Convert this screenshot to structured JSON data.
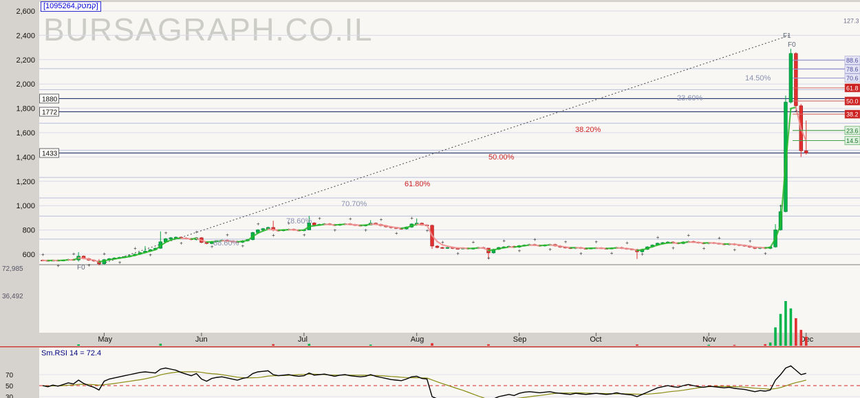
{
  "app": {
    "ticker": "[1095264,קמטק]",
    "watermark": "BURSAGRAPH.CO.IL"
  },
  "colors": {
    "up": "#00a040",
    "up_fill": "#00b44a",
    "down": "#e03030",
    "grid": "#d8d8e8",
    "fib_faint": "#b8bcdc",
    "navy": "#26366e",
    "trend": "#444444",
    "watermark": "#cccdc6",
    "plot_bg": "#f8f7f4",
    "band_bg": "#d6d3ce",
    "ma_up": "#2ab82a",
    "ma_down": "#f09090",
    "red_line": "#cc2222",
    "rsi_line": "#000000",
    "rsi_signal": "#8a8a10",
    "axis_text": "#111111",
    "vol_text": "#555566"
  },
  "chart_data": {
    "type": "candlestick",
    "title": "[1095264,קמטק]",
    "x_range": "May - Dec",
    "ylim": [
      450,
      2650
    ],
    "price_ticks": [
      {
        "label": "2,600",
        "value": 2600
      },
      {
        "label": "2,400",
        "value": 2400
      },
      {
        "label": "2,200",
        "value": 2200
      },
      {
        "label": "2,000",
        "value": 2000
      },
      {
        "label": "1,800",
        "value": 1800
      },
      {
        "label": "1,600",
        "value": 1600
      },
      {
        "label": "1,400",
        "value": 1400
      },
      {
        "label": "1,200",
        "value": 1200
      },
      {
        "label": "1,000",
        "value": 1000
      },
      {
        "label": "800",
        "value": 800
      },
      {
        "label": "600",
        "value": 600
      }
    ],
    "volume_ticks": [
      {
        "label": "72,985",
        "y": 394
      },
      {
        "label": "36,492",
        "y": 434
      }
    ],
    "months": [
      {
        "label": "May",
        "i": 12
      },
      {
        "label": "Jun",
        "i": 31
      },
      {
        "label": "Jul",
        "i": 51
      },
      {
        "label": "Aug",
        "i": 73
      },
      {
        "label": "Sep",
        "i": 93
      },
      {
        "label": "Oct",
        "i": 108
      },
      {
        "label": "Nov",
        "i": 130
      },
      {
        "label": "Dec",
        "i": 149
      }
    ],
    "level_lines": [
      {
        "label": "1880",
        "value": 1880
      },
      {
        "label": "1772",
        "value": 1772
      },
      {
        "label": "1433",
        "value": 1433
      }
    ],
    "base_level": 515,
    "fib_trend": {
      "from": {
        "i": 11,
        "price": 515
      },
      "to": {
        "i": 145.8,
        "price": 2400
      }
    },
    "fib_levels_faint": [
      725,
      914,
      1063,
      1232,
      1455,
      1678,
      1954,
      2126
    ],
    "fib_labels": [
      {
        "label": "14.50%",
        "x": 1083,
        "y": 117,
        "red": false
      },
      {
        "label": "23.60%",
        "x": 984,
        "y": 146,
        "red": false
      },
      {
        "label": "38.20%",
        "x": 836,
        "y": 192,
        "red": true
      },
      {
        "label": "50.00%",
        "x": 710,
        "y": 232,
        "red": true
      },
      {
        "label": "61.80%",
        "x": 588,
        "y": 271,
        "red": true
      },
      {
        "label": "70.70%",
        "x": 496,
        "y": 300,
        "red": false
      },
      {
        "label": "78.60%",
        "x": 416,
        "y": 325,
        "red": false
      },
      {
        "label": "88.60%",
        "x": 310,
        "y": 357,
        "red": false
      }
    ],
    "endpoint_labels": [
      {
        "label": "F1",
        "x": 1138,
        "y": 55
      },
      {
        "label": "F0",
        "x": 1145,
        "y": 68
      },
      {
        "label": "F0",
        "x": 112,
        "y": 392
      }
    ],
    "right_labels": [
      {
        "label": "127.3",
        "price": 2521,
        "type": "plain"
      },
      {
        "label": "88.6",
        "price": 2195,
        "type": "blue"
      },
      {
        "label": "78.6",
        "price": 2122,
        "type": "blue"
      },
      {
        "label": "70.6",
        "price": 2049,
        "type": "blue"
      },
      {
        "label": "61.8",
        "price": 1968,
        "type": "red"
      },
      {
        "label": "50.0",
        "price": 1860,
        "type": "red"
      },
      {
        "label": "38.2",
        "price": 1752,
        "type": "red"
      },
      {
        "label": "23.6",
        "price": 1618,
        "type": "green"
      },
      {
        "label": "14.5",
        "price": 1535,
        "type": "green"
      }
    ],
    "closes": [
      550,
      548,
      551,
      549,
      552,
      558,
      554,
      585,
      565,
      552,
      545,
      522,
      556,
      564,
      570,
      575,
      581,
      590,
      601,
      614,
      626,
      638,
      650,
      703,
      728,
      736,
      741,
      734,
      729,
      721,
      736,
      698,
      689,
      704,
      711,
      716,
      709,
      704,
      699,
      711,
      721,
      779,
      801,
      811,
      821,
      799,
      794,
      801,
      806,
      799,
      795,
      801,
      858,
      841,
      846,
      851,
      844,
      839,
      846,
      851,
      844,
      839,
      835,
      841,
      856,
      846,
      836,
      826,
      819,
      814,
      809,
      824,
      849,
      856,
      841,
      838,
      668,
      656,
      651,
      656,
      649,
      647,
      651,
      645,
      650,
      656,
      651,
      612,
      641,
      656,
      661,
      666,
      659,
      671,
      676,
      681,
      674,
      669,
      676,
      681,
      669,
      659,
      654,
      649,
      656,
      649,
      647,
      651,
      653,
      649,
      647,
      651,
      656,
      649,
      644,
      639,
      621,
      641,
      661,
      676,
      691,
      696,
      701,
      694,
      689,
      701,
      706,
      699,
      694,
      689,
      696,
      691,
      686,
      681,
      686,
      679,
      674,
      669,
      659,
      649,
      656,
      649,
      661,
      801,
      951,
      1851,
      2251,
      1821,
      1451,
      1433
    ],
    "wicks": {
      "7": [
        618,
        540
      ],
      "11": [
        560,
        510
      ],
      "20": [
        668,
        620
      ],
      "23": [
        788,
        645
      ],
      "45": [
        876,
        790
      ],
      "52": [
        916,
        838
      ],
      "64": [
        881,
        840
      ],
      "73": [
        895,
        835
      ],
      "76": [
        845,
        645
      ],
      "87": [
        645,
        560
      ],
      "116": [
        645,
        562
      ],
      "143": [
        848,
        655
      ],
      "144": [
        1005,
        795
      ],
      "145": [
        1905,
        945
      ],
      "146": [
        2290,
        1840
      ],
      "147": [
        2260,
        1790
      ],
      "148": [
        1835,
        1400
      ],
      "149": [
        1700,
        1420
      ]
    },
    "volumes": {
      "7": 2200,
      "23": 3400,
      "45": 2600,
      "52": 3100,
      "64": 1800,
      "76": 4200,
      "87": 2400,
      "116": 2100,
      "130": 1600,
      "135": 1400,
      "141": 2600,
      "142": 5200,
      "143": 30000,
      "144": 52000,
      "145": 72985,
      "146": 61000,
      "147": 45000,
      "148": 26000,
      "149": 15000
    },
    "rsi": {
      "label": "Sm.RSI 14 = 72.4",
      "mid": 50,
      "axis": [
        {
          "label": "70",
          "value": 70
        },
        {
          "label": "50",
          "value": 50
        },
        {
          "label": "30",
          "value": 30
        }
      ],
      "values": [
        50,
        48,
        51,
        49,
        52,
        55,
        53,
        60,
        54,
        50,
        47,
        42,
        58,
        62,
        64,
        66,
        68,
        70,
        72,
        74,
        75,
        74,
        73,
        80,
        82,
        80,
        78,
        74,
        71,
        68,
        72,
        62,
        58,
        63,
        65,
        66,
        64,
        62,
        60,
        63,
        65,
        72,
        75,
        76,
        77,
        70,
        68,
        69,
        70,
        68,
        67,
        68,
        73,
        69,
        70,
        71,
        69,
        67,
        69,
        70,
        68,
        67,
        66,
        67,
        70,
        67,
        65,
        63,
        61,
        60,
        59,
        62,
        66,
        67,
        63,
        62,
        30,
        26,
        25,
        26,
        24,
        23,
        24,
        22,
        23,
        25,
        24,
        20,
        26,
        30,
        32,
        34,
        32,
        36,
        38,
        39,
        38,
        37,
        38,
        39,
        37,
        36,
        35,
        34,
        36,
        35,
        34,
        35,
        36,
        35,
        34,
        35,
        37,
        35,
        34,
        33,
        30,
        34,
        38,
        42,
        46,
        48,
        50,
        48,
        47,
        50,
        52,
        50,
        48,
        47,
        49,
        48,
        47,
        46,
        47,
        45,
        44,
        43,
        41,
        39,
        41,
        40,
        42,
        60,
        70,
        82,
        86,
        78,
        70,
        72.4
      ]
    }
  }
}
